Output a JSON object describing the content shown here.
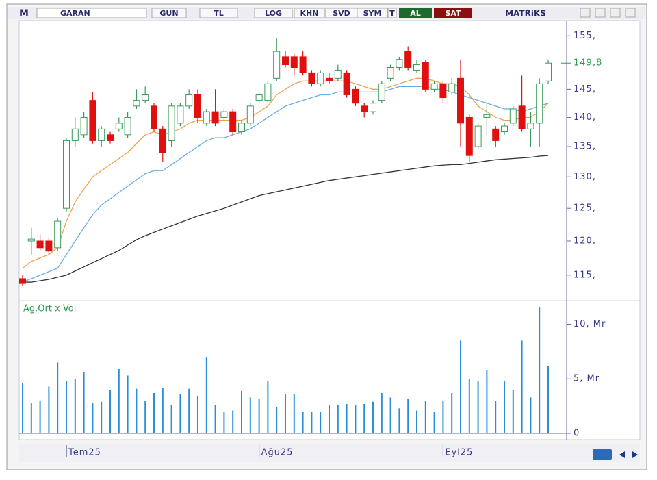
{
  "toolbar": {
    "logo": "M",
    "symbol": "GARAN",
    "buttons": [
      "GUN",
      "TL",
      "LOG",
      "KHN",
      "SVD",
      "SYM",
      "T"
    ],
    "buy": "AL",
    "sell": "SAT",
    "brand": "MATRiKS"
  },
  "chart_data": [
    {
      "type": "candlestick",
      "log_scale": true,
      "open": [
        114.5,
        120,
        120,
        120,
        119,
        125,
        136,
        137,
        143,
        136,
        137,
        138,
        137,
        142,
        143,
        142,
        138,
        136,
        139,
        142,
        144,
        139,
        141,
        140,
        141,
        137.5,
        139,
        143,
        143,
        147,
        151,
        151,
        151,
        148,
        146,
        147,
        147,
        148,
        145,
        142,
        141,
        143,
        147,
        149,
        152,
        148.5,
        150,
        145,
        146,
        144.5,
        147,
        140,
        135,
        140,
        138,
        137.5,
        139,
        142,
        138,
        139,
        146.5
      ],
      "high": [
        115,
        122,
        121,
        120.5,
        123.5,
        136.5,
        140,
        141,
        144.5,
        138.5,
        137.5,
        140,
        141,
        145,
        145.5,
        142.5,
        138.5,
        142.5,
        142.5,
        145,
        145,
        141.5,
        145,
        141.5,
        141.5,
        139.5,
        142.5,
        144.5,
        146.5,
        154.5,
        152,
        151.5,
        152,
        148.5,
        148.5,
        148,
        149.5,
        148.5,
        145.5,
        142.5,
        143,
        146.5,
        149.5,
        151,
        153,
        150.5,
        150.5,
        146.5,
        146.5,
        147,
        150.5,
        140.5,
        139,
        143,
        138.5,
        139,
        142,
        147.5,
        141,
        147,
        150.5
      ],
      "low": [
        113.5,
        118,
        118.5,
        118,
        118.5,
        124.5,
        135,
        136.5,
        135.5,
        135,
        135.5,
        137.5,
        136.5,
        141.5,
        142.5,
        137.5,
        132.5,
        135,
        138.5,
        141.5,
        139,
        138.5,
        138.5,
        139.5,
        137,
        137,
        138.5,
        142.5,
        142.5,
        146.5,
        149,
        147.5,
        147.5,
        145.5,
        145.5,
        146,
        146.5,
        143.5,
        142,
        140,
        140.5,
        142.5,
        146.5,
        148.5,
        148.5,
        148,
        144.5,
        144.5,
        142.5,
        144,
        135,
        132.5,
        134.5,
        137,
        135,
        137,
        138.5,
        137.5,
        135,
        135,
        146
      ],
      "close": [
        113.8,
        120.3,
        119,
        118.5,
        123,
        136,
        138,
        140,
        136,
        138,
        136,
        139,
        140,
        143,
        144,
        138,
        134,
        142,
        142,
        144,
        140,
        141,
        139,
        141,
        137.5,
        139,
        142,
        144,
        146,
        152,
        149.5,
        149,
        148,
        146,
        148,
        146.5,
        148.5,
        144,
        142.5,
        141,
        142.5,
        146,
        149,
        150.5,
        149,
        149.5,
        145,
        146,
        143.5,
        146,
        139,
        133.5,
        138.5,
        140.5,
        136,
        138.5,
        141.5,
        138,
        139,
        146,
        149.8
      ],
      "up_color": "#ffffff",
      "up_border": "#3a9a5a",
      "down_color": "#e01010",
      "series": [
        {
          "color": "#f0a050",
          "values": [
            116,
            117,
            117.5,
            118,
            119,
            123,
            126,
            128,
            130,
            131,
            132,
            133,
            134,
            135.5,
            137,
            137.5,
            137,
            137.5,
            138,
            139,
            139.5,
            139.5,
            139.5,
            139.5,
            139.5,
            139.5,
            140,
            141,
            142,
            144,
            145,
            146,
            146.5,
            146.5,
            146.5,
            146.5,
            146.5,
            146.5,
            146,
            145.5,
            145,
            145,
            145.5,
            146,
            146.5,
            147,
            147,
            146.5,
            146,
            146,
            145.5,
            144,
            142,
            141,
            140,
            139.5,
            139.5,
            140,
            140,
            141,
            142.5
          ]
        },
        {
          "color": "#6aaae8",
          "values": [
            114,
            114.5,
            115,
            115.5,
            116,
            118,
            120,
            122,
            124,
            125.5,
            126.5,
            127.5,
            128.5,
            129.5,
            130.5,
            131,
            131,
            132,
            133,
            134,
            135,
            136,
            136.5,
            136.5,
            137,
            137.5,
            138,
            139,
            140,
            141,
            142,
            142.5,
            143,
            143.5,
            144,
            144,
            144.5,
            144.5,
            144.5,
            144.5,
            144.5,
            144.5,
            145,
            145.5,
            145.5,
            145.5,
            145.5,
            145,
            145,
            144.5,
            144,
            143.5,
            143,
            142.5,
            142,
            141.5,
            141.5,
            141,
            141.5,
            142,
            142.5
          ]
        },
        {
          "color": "#333333",
          "values": [
            114,
            114,
            114.2,
            114.4,
            114.7,
            115,
            115.6,
            116.2,
            116.8,
            117.4,
            118,
            118.6,
            119.4,
            120.2,
            120.8,
            121.3,
            121.8,
            122.3,
            122.8,
            123.3,
            123.8,
            124.2,
            124.6,
            125,
            125.5,
            126,
            126.5,
            127,
            127.3,
            127.6,
            127.9,
            128.2,
            128.5,
            128.8,
            129.1,
            129.4,
            129.6,
            129.8,
            130,
            130.2,
            130.4,
            130.6,
            130.8,
            131,
            131.2,
            131.4,
            131.6,
            131.8,
            131.9,
            132,
            132,
            132.2,
            132.4,
            132.6,
            132.8,
            132.9,
            133,
            133.1,
            133.2,
            133.4,
            133.5
          ]
        }
      ],
      "ylim": [
        111.6,
        157.3
      ],
      "yticks": [
        {
          "value": 155,
          "label": "155,"
        },
        {
          "value": 145,
          "label": "145,"
        },
        {
          "value": 140,
          "label": "140,"
        },
        {
          "value": 135,
          "label": "135,"
        },
        {
          "value": 130,
          "label": "130,"
        },
        {
          "value": 125,
          "label": "125,"
        },
        {
          "value": 120,
          "label": "120,"
        },
        {
          "value": 115,
          "label": "115,"
        }
      ],
      "last_price": {
        "value": 149.8,
        "label": "149,8"
      },
      "last_price_color": "#2a9a4a"
    },
    {
      "type": "bar",
      "title": "Ag.Ort x Vol",
      "color": "#2a8fd8",
      "categories": [
        null,
        null,
        null,
        null,
        null,
        "Tem25",
        null,
        null,
        null,
        null,
        null,
        null,
        null,
        null,
        null,
        null,
        null,
        null,
        null,
        null,
        null,
        null,
        null,
        null,
        null,
        null,
        null,
        "Ağu25",
        null,
        null,
        null,
        null,
        null,
        null,
        null,
        null,
        null,
        null,
        null,
        null,
        null,
        null,
        null,
        null,
        null,
        null,
        null,
        null,
        "Eyl25",
        null,
        null,
        null,
        null,
        null,
        null,
        null,
        null,
        null,
        null,
        null,
        null
      ],
      "values": [
        4.6,
        2.8,
        3,
        4.3,
        6.5,
        4.8,
        5,
        5.6,
        2.8,
        2.9,
        4,
        5.9,
        5.3,
        4.1,
        3,
        3.7,
        4.2,
        2.6,
        3.6,
        4.1,
        3.4,
        7,
        2.6,
        2,
        2.1,
        3.9,
        3.3,
        3.2,
        4.8,
        2.4,
        3.6,
        3.6,
        2,
        2,
        2,
        2.6,
        2.6,
        2.7,
        2.6,
        2.7,
        2.9,
        3.7,
        3.3,
        2.3,
        3.2,
        2.1,
        3,
        2,
        3,
        3.7,
        8.5,
        5,
        4.8,
        5.8,
        3,
        4.8,
        4,
        8.5,
        3.3,
        11.6,
        6.2
      ],
      "ylim": [
        0,
        12.1
      ],
      "yticks": [
        {
          "value": 10,
          "label": "10, Mr"
        },
        {
          "value": 5,
          "label": "5, Mr"
        },
        0
      ]
    }
  ]
}
